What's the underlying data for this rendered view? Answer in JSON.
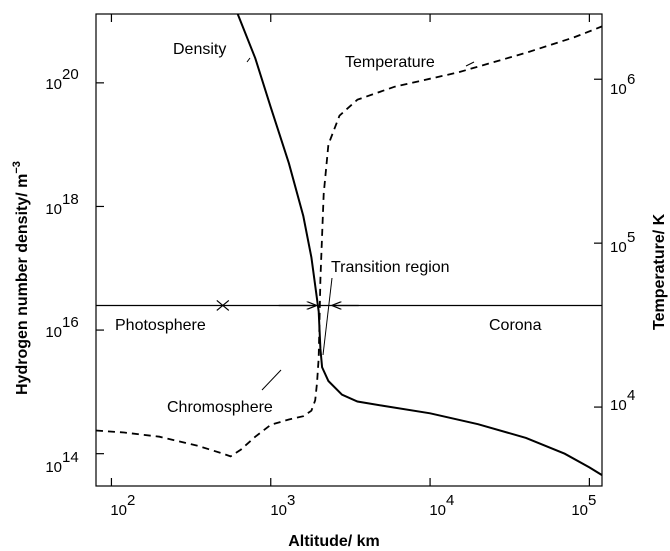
{
  "chart_data": {
    "type": "line",
    "xlabel": "Altitude/ km",
    "ylabel_left": "Hydrogen number density/ m",
    "ylabel_left_exp": "−3",
    "ylabel_right": "Temperature/ K",
    "x_scale": "log",
    "y_left_scale": "log",
    "y_right_scale": "log",
    "xlim": [
      80,
      120000
    ],
    "ylim_left": [
      30000000000000.0,
      1.3e+21
    ],
    "ylim_right": [
      3300,
      2500000
    ],
    "x_ticks": [
      {
        "value": 100,
        "base": "10",
        "exp": "2"
      },
      {
        "value": 1000,
        "base": "10",
        "exp": "3"
      },
      {
        "value": 10000,
        "base": "10",
        "exp": "4"
      },
      {
        "value": 100000,
        "base": "10",
        "exp": "5"
      }
    ],
    "y_left_ticks": [
      {
        "value": 100000000000000.0,
        "base": "10",
        "exp": "14"
      },
      {
        "value": 1e+16,
        "base": "10",
        "exp": "16"
      },
      {
        "value": 1e+18,
        "base": "10",
        "exp": "18"
      },
      {
        "value": 1e+20,
        "base": "10",
        "exp": "20"
      }
    ],
    "y_right_ticks": [
      {
        "value": 10000,
        "base": "10",
        "exp": "4"
      },
      {
        "value": 100000,
        "base": "10",
        "exp": "5"
      },
      {
        "value": 1000000,
        "base": "10",
        "exp": "6"
      }
    ],
    "series": [
      {
        "name": "Density",
        "axis": "left",
        "style": "solid",
        "points": [
          [
            620,
            1.3e+21
          ],
          [
            800,
            2.5e+20
          ],
          [
            1000,
            4e+19
          ],
          [
            1300,
            5e+18
          ],
          [
            1600,
            7e+17
          ],
          [
            1800,
            1.5e+17
          ],
          [
            2000,
            2e+16
          ],
          [
            2050,
            5000000000000000.0
          ],
          [
            2100,
            2500000000000000.0
          ],
          [
            2300,
            1500000000000000.0
          ],
          [
            2800,
            900000000000000.0
          ],
          [
            3500,
            700000000000000.0
          ],
          [
            5000,
            600000000000000.0
          ],
          [
            10000,
            450000000000000.0
          ],
          [
            20000,
            300000000000000.0
          ],
          [
            40000,
            180000000000000.0
          ],
          [
            70000,
            100000000000000.0
          ],
          [
            100000,
            60000000000000.0
          ],
          [
            120000,
            45000000000000.0
          ]
        ]
      },
      {
        "name": "Temperature",
        "axis": "right",
        "style": "dashed",
        "points": [
          [
            80,
            7200
          ],
          [
            120,
            7000
          ],
          [
            200,
            6600
          ],
          [
            350,
            5800
          ],
          [
            500,
            5200
          ],
          [
            560,
            5000
          ],
          [
            650,
            5500
          ],
          [
            800,
            6600
          ],
          [
            1000,
            7800
          ],
          [
            1300,
            8400
          ],
          [
            1600,
            8800
          ],
          [
            1800,
            9500
          ],
          [
            1900,
            11000
          ],
          [
            1950,
            14000
          ],
          [
            2000,
            20000
          ],
          [
            2050,
            60000
          ],
          [
            2150,
            200000
          ],
          [
            2300,
            400000
          ],
          [
            2700,
            600000
          ],
          [
            3500,
            750000
          ],
          [
            6000,
            900000
          ],
          [
            15000,
            1100000
          ],
          [
            40000,
            1450000
          ],
          [
            80000,
            1800000
          ],
          [
            120000,
            2100000
          ]
        ]
      }
    ],
    "region_line": {
      "y_value": 2.5e+16,
      "x_start": 80,
      "x_end": 120000
    },
    "boundaries": [
      {
        "label": "Photosphere",
        "x_value": 500,
        "marker": "x"
      },
      {
        "label": "Transition region",
        "x_value": 2000,
        "marker": "arrow-right"
      },
      {
        "label": "Corona",
        "x_value": 2000,
        "marker": "arrow-left"
      }
    ],
    "annotations": {
      "density": "Density",
      "temperature": "Temperature",
      "photosphere": "Photosphere",
      "chromosphere": "Chromosphere",
      "transition": "Transition region",
      "corona": "Corona"
    }
  }
}
